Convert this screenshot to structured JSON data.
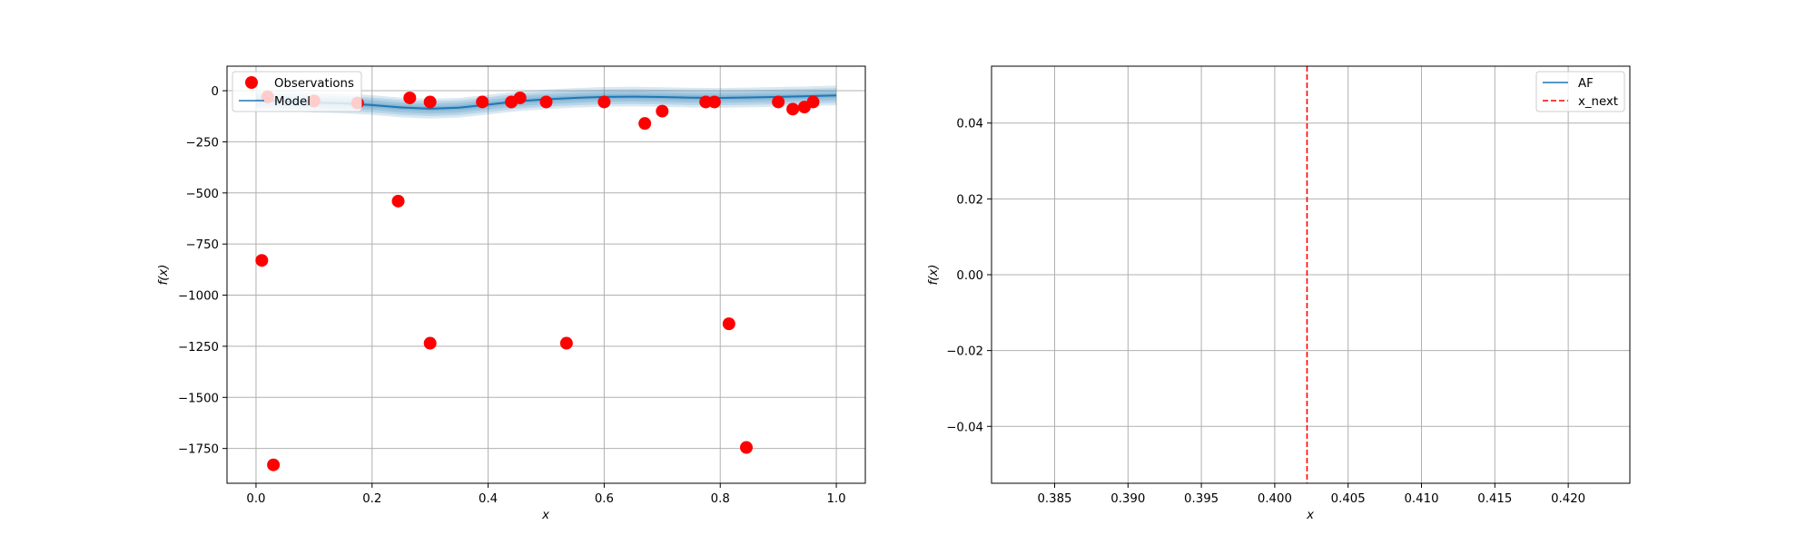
{
  "chart_data": [
    {
      "type": "scatter",
      "title": "",
      "xlabel": "x",
      "ylabel": "f(x)",
      "xlim": [
        -0.05,
        1.05
      ],
      "ylim": [
        -1920,
        120
      ],
      "xticks": [
        0.0,
        0.2,
        0.4,
        0.6,
        0.8,
        1.0
      ],
      "xtick_labels": [
        "0.0",
        "0.2",
        "0.4",
        "0.6",
        "0.8",
        "1.0"
      ],
      "yticks": [
        0,
        -250,
        -500,
        -750,
        -1000,
        -1250,
        -1500,
        -1750
      ],
      "ytick_labels": [
        "0",
        "−250",
        "−500",
        "−750",
        "−1000",
        "−1250",
        "−1500",
        "−1750"
      ],
      "grid": true,
      "legend": {
        "placement": "upper-left",
        "entries": [
          "Observations",
          "Model"
        ]
      },
      "series": [
        {
          "name": "Observations",
          "kind": "scatter",
          "color": "#ff0000",
          "points": [
            [
              0.01,
              -830
            ],
            [
              0.02,
              -30
            ],
            [
              0.03,
              -1830
            ],
            [
              0.1,
              -50
            ],
            [
              0.175,
              -60
            ],
            [
              0.245,
              -540
            ],
            [
              0.265,
              -35
            ],
            [
              0.3,
              -1235
            ],
            [
              0.3,
              -55
            ],
            [
              0.39,
              -55
            ],
            [
              0.44,
              -55
            ],
            [
              0.455,
              -35
            ],
            [
              0.5,
              -55
            ],
            [
              0.535,
              -1235
            ],
            [
              0.6,
              -55
            ],
            [
              0.67,
              -160
            ],
            [
              0.7,
              -100
            ],
            [
              0.775,
              -55
            ],
            [
              0.79,
              -55
            ],
            [
              0.815,
              -1140
            ],
            [
              0.845,
              -1745
            ],
            [
              0.9,
              -55
            ],
            [
              0.925,
              -90
            ],
            [
              0.945,
              -80
            ],
            [
              0.96,
              -55
            ]
          ]
        },
        {
          "name": "Model",
          "kind": "line",
          "color": "#1f77b4",
          "x": [
            0.0,
            0.05,
            0.1,
            0.15,
            0.2,
            0.25,
            0.3,
            0.35,
            0.4,
            0.45,
            0.5,
            0.55,
            0.6,
            0.65,
            0.7,
            0.75,
            0.8,
            0.85,
            0.9,
            0.95,
            1.0
          ],
          "y": [
            -45,
            -52,
            -58,
            -62,
            -70,
            -82,
            -88,
            -83,
            -68,
            -52,
            -42,
            -35,
            -30,
            -29,
            -31,
            -34,
            -35,
            -33,
            -30,
            -27,
            -23
          ],
          "band_halfwidths": [
            12,
            24,
            36,
            48
          ]
        }
      ]
    },
    {
      "type": "line",
      "title": "",
      "xlabel": "x",
      "ylabel": "f(x)",
      "xlim": [
        0.3807,
        0.4242
      ],
      "ylim": [
        -0.055,
        0.055
      ],
      "xticks": [
        0.385,
        0.39,
        0.395,
        0.4,
        0.405,
        0.41,
        0.415,
        0.42
      ],
      "xtick_labels": [
        "0.385",
        "0.390",
        "0.395",
        "0.400",
        "0.405",
        "0.410",
        "0.415",
        "0.420"
      ],
      "yticks": [
        0.04,
        0.02,
        0.0,
        -0.02,
        -0.04
      ],
      "ytick_labels": [
        "0.04",
        "0.02",
        "0.00",
        "−0.02",
        "−0.04"
      ],
      "grid": true,
      "legend": {
        "placement": "upper-right",
        "entries": [
          "AF",
          "x_next"
        ]
      },
      "series": [
        {
          "name": "AF",
          "kind": "line",
          "color": "#1f77b4",
          "x": [],
          "y": []
        },
        {
          "name": "x_next",
          "kind": "vline",
          "color": "#ff0000",
          "x": 0.4022
        }
      ]
    }
  ]
}
